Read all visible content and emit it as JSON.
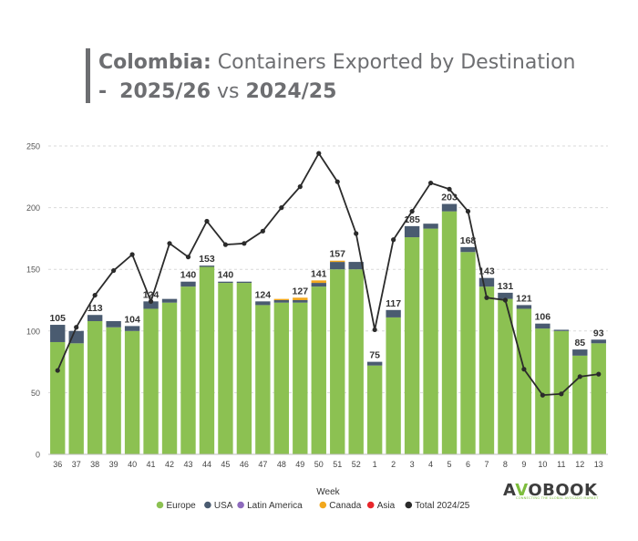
{
  "title": {
    "country": "Colombia:",
    "rest": " Containers Exported by Destination",
    "dash": "-",
    "season_current": "2025/26",
    "vs": " vs ",
    "season_previous": "2024/25"
  },
  "logo": {
    "brand_prefix": "A",
    "brand_v": "V",
    "brand_suffix": "OBOOK",
    "tagline": "CONNECTING THE GLOBAL AVOCADO MARKET"
  },
  "chart_data": {
    "type": "bar",
    "stacked": true,
    "xlabel": "Week",
    "ylabel": "",
    "ylim": [
      0,
      250
    ],
    "yticks": [
      0,
      50,
      100,
      150,
      200,
      250
    ],
    "grid": true,
    "legend_position": "bottom",
    "categories": [
      "36",
      "37",
      "38",
      "39",
      "40",
      "41",
      "42",
      "43",
      "44",
      "45",
      "46",
      "47",
      "48",
      "49",
      "50",
      "51",
      "52",
      "1",
      "2",
      "3",
      "4",
      "5",
      "6",
      "7",
      "8",
      "9",
      "10",
      "11",
      "12",
      "13"
    ],
    "series": [
      {
        "name": "Europe",
        "color": "#8cc152",
        "values": [
          91,
          90,
          108,
          103,
          100,
          118,
          123,
          136,
          152,
          139,
          139,
          121,
          123,
          123,
          136,
          150,
          150,
          72,
          111,
          176,
          183,
          197,
          164,
          136,
          126,
          118,
          102,
          100,
          80,
          90
        ]
      },
      {
        "name": "USA",
        "color": "#4a5b70",
        "values": [
          14,
          10,
          5,
          5,
          4,
          6,
          3,
          4,
          1,
          1,
          1,
          3,
          2,
          2,
          3,
          6,
          6,
          3,
          6,
          9,
          4,
          6,
          4,
          7,
          5,
          3,
          4,
          1,
          5,
          3
        ]
      },
      {
        "name": "Latin America",
        "color": "#8e6bbd",
        "values": [
          0,
          0,
          0,
          0,
          0,
          0,
          0,
          0,
          0,
          0,
          0,
          0,
          0,
          0,
          0,
          0,
          0,
          0,
          0,
          0,
          0,
          0,
          0,
          0,
          0,
          0,
          0,
          0,
          0,
          0
        ]
      },
      {
        "name": "Canada",
        "color": "#f2a81d",
        "values": [
          0,
          0,
          0,
          0,
          0,
          0,
          0,
          0,
          0,
          0,
          0,
          0,
          1,
          2,
          2,
          1,
          0,
          0,
          0,
          0,
          0,
          0,
          0,
          0,
          0,
          0,
          0,
          0,
          0,
          0
        ]
      },
      {
        "name": "Asia",
        "color": "#e8262b",
        "values": [
          0,
          0,
          0,
          0,
          0,
          0,
          0,
          0,
          0,
          0,
          0,
          0,
          0,
          0,
          0,
          0,
          0,
          0,
          0,
          0,
          0,
          0,
          0,
          0,
          0,
          0,
          0,
          0,
          0,
          0
        ]
      },
      {
        "name": "Total 2024/25",
        "type": "line",
        "color": "#2b2b2b",
        "values": [
          68,
          103,
          129,
          149,
          162,
          124,
          171,
          160,
          189,
          170,
          171,
          181,
          200,
          217,
          244,
          221,
          179,
          101,
          174,
          197,
          220,
          215,
          197,
          127,
          125,
          69,
          48,
          49,
          63,
          65
        ]
      }
    ],
    "totals_labels": [
      {
        "category": "36",
        "label": "105"
      },
      {
        "category": "38",
        "label": "113"
      },
      {
        "category": "40",
        "label": "104"
      },
      {
        "category": "41",
        "label": "124"
      },
      {
        "category": "43",
        "label": "140"
      },
      {
        "category": "44",
        "label": "153"
      },
      {
        "category": "45",
        "label": "140"
      },
      {
        "category": "47",
        "label": "124"
      },
      {
        "category": "49",
        "label": "127"
      },
      {
        "category": "50",
        "label": "141"
      },
      {
        "category": "51",
        "label": "157"
      },
      {
        "category": "1",
        "label": "75"
      },
      {
        "category": "2",
        "label": "117"
      },
      {
        "category": "3",
        "label": "185"
      },
      {
        "category": "5",
        "label": "203"
      },
      {
        "category": "6",
        "label": "168"
      },
      {
        "category": "7",
        "label": "143"
      },
      {
        "category": "8",
        "label": "131"
      },
      {
        "category": "9",
        "label": "121"
      },
      {
        "category": "10",
        "label": "106"
      },
      {
        "category": "12",
        "label": "85"
      },
      {
        "category": "13",
        "label": "93"
      }
    ]
  }
}
